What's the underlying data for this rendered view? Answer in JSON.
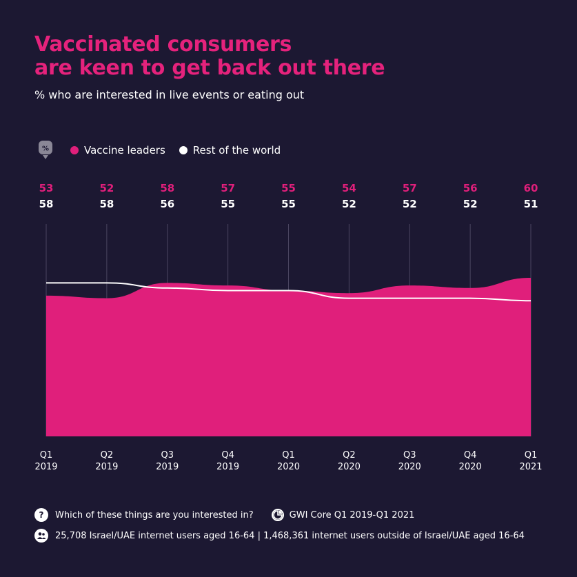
{
  "header": {
    "title_line1": "Vaccinated consumers",
    "title_line2": "are keen to get back out there",
    "subtitle": "% who are interested in live events or eating out"
  },
  "legend": {
    "unit_icon": "percent-icon",
    "items": [
      {
        "label": "Vaccine leaders",
        "color": "#e01f7b"
      },
      {
        "label": "Rest of the world",
        "color": "#ffffff"
      }
    ]
  },
  "footer": {
    "question": "Which of these things are you interested in?",
    "source": "GWI Core Q1 2019-Q1 2021",
    "sample": "25,708 Israel/UAE internet users aged 16-64 | 1,468,361 internet users outside of Israel/UAE aged 16-64"
  },
  "colors": {
    "background": "#1c1832",
    "accent": "#e5227c",
    "area": "#e01f7b",
    "line": "#ffffff",
    "grid": "#4a4560"
  },
  "chart_data": {
    "type": "area",
    "categories": [
      [
        "Q1",
        "2019"
      ],
      [
        "Q2",
        "2019"
      ],
      [
        "Q3",
        "2019"
      ],
      [
        "Q4",
        "2019"
      ],
      [
        "Q1",
        "2020"
      ],
      [
        "Q2",
        "2020"
      ],
      [
        "Q3",
        "2020"
      ],
      [
        "Q4",
        "2020"
      ],
      [
        "Q1",
        "2021"
      ]
    ],
    "series": [
      {
        "name": "Vaccine leaders",
        "type": "area",
        "color": "#e01f7b",
        "values": [
          53,
          52,
          58,
          57,
          55,
          54,
          57,
          56,
          60
        ]
      },
      {
        "name": "Rest of the world",
        "type": "line",
        "color": "#ffffff",
        "values": [
          58,
          58,
          56,
          55,
          55,
          52,
          52,
          52,
          51
        ]
      }
    ],
    "ylim": [
      0,
      100
    ],
    "grid": "vertical",
    "data_labels": "top"
  }
}
